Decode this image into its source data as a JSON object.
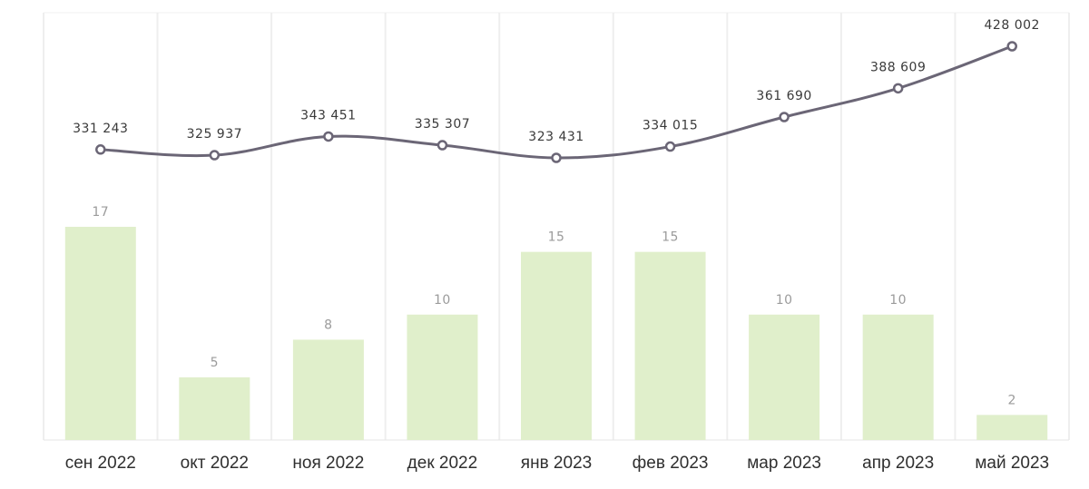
{
  "chart_data": {
    "type": "bar",
    "categories": [
      "сен 2022",
      "окт 2022",
      "ноя 2022",
      "дек 2022",
      "янв 2023",
      "фев 2023",
      "мар 2023",
      "апр 2023",
      "май 2023"
    ],
    "series": [
      {
        "type": "bar",
        "values": [
          17,
          5,
          8,
          10,
          15,
          15,
          10,
          10,
          2
        ],
        "labels": [
          "17",
          "5",
          "8",
          "10",
          "15",
          "15",
          "10",
          "10",
          "2"
        ],
        "color": "#e0efcb",
        "label_color": "#9b9b9b"
      },
      {
        "type": "line",
        "values": [
          331243,
          325937,
          343451,
          335307,
          323431,
          334015,
          361690,
          388609,
          428002
        ],
        "labels": [
          "331 243",
          "325 937",
          "343 451",
          "335 307",
          "323 431",
          "334 015",
          "361 690",
          "388 609",
          "428 002"
        ],
        "color": "#6b6676",
        "label_color": "#3a3a3a"
      }
    ],
    "title": "",
    "xlabel": "",
    "ylabel": "",
    "grid": "vertical separators between months",
    "legend": "none"
  }
}
